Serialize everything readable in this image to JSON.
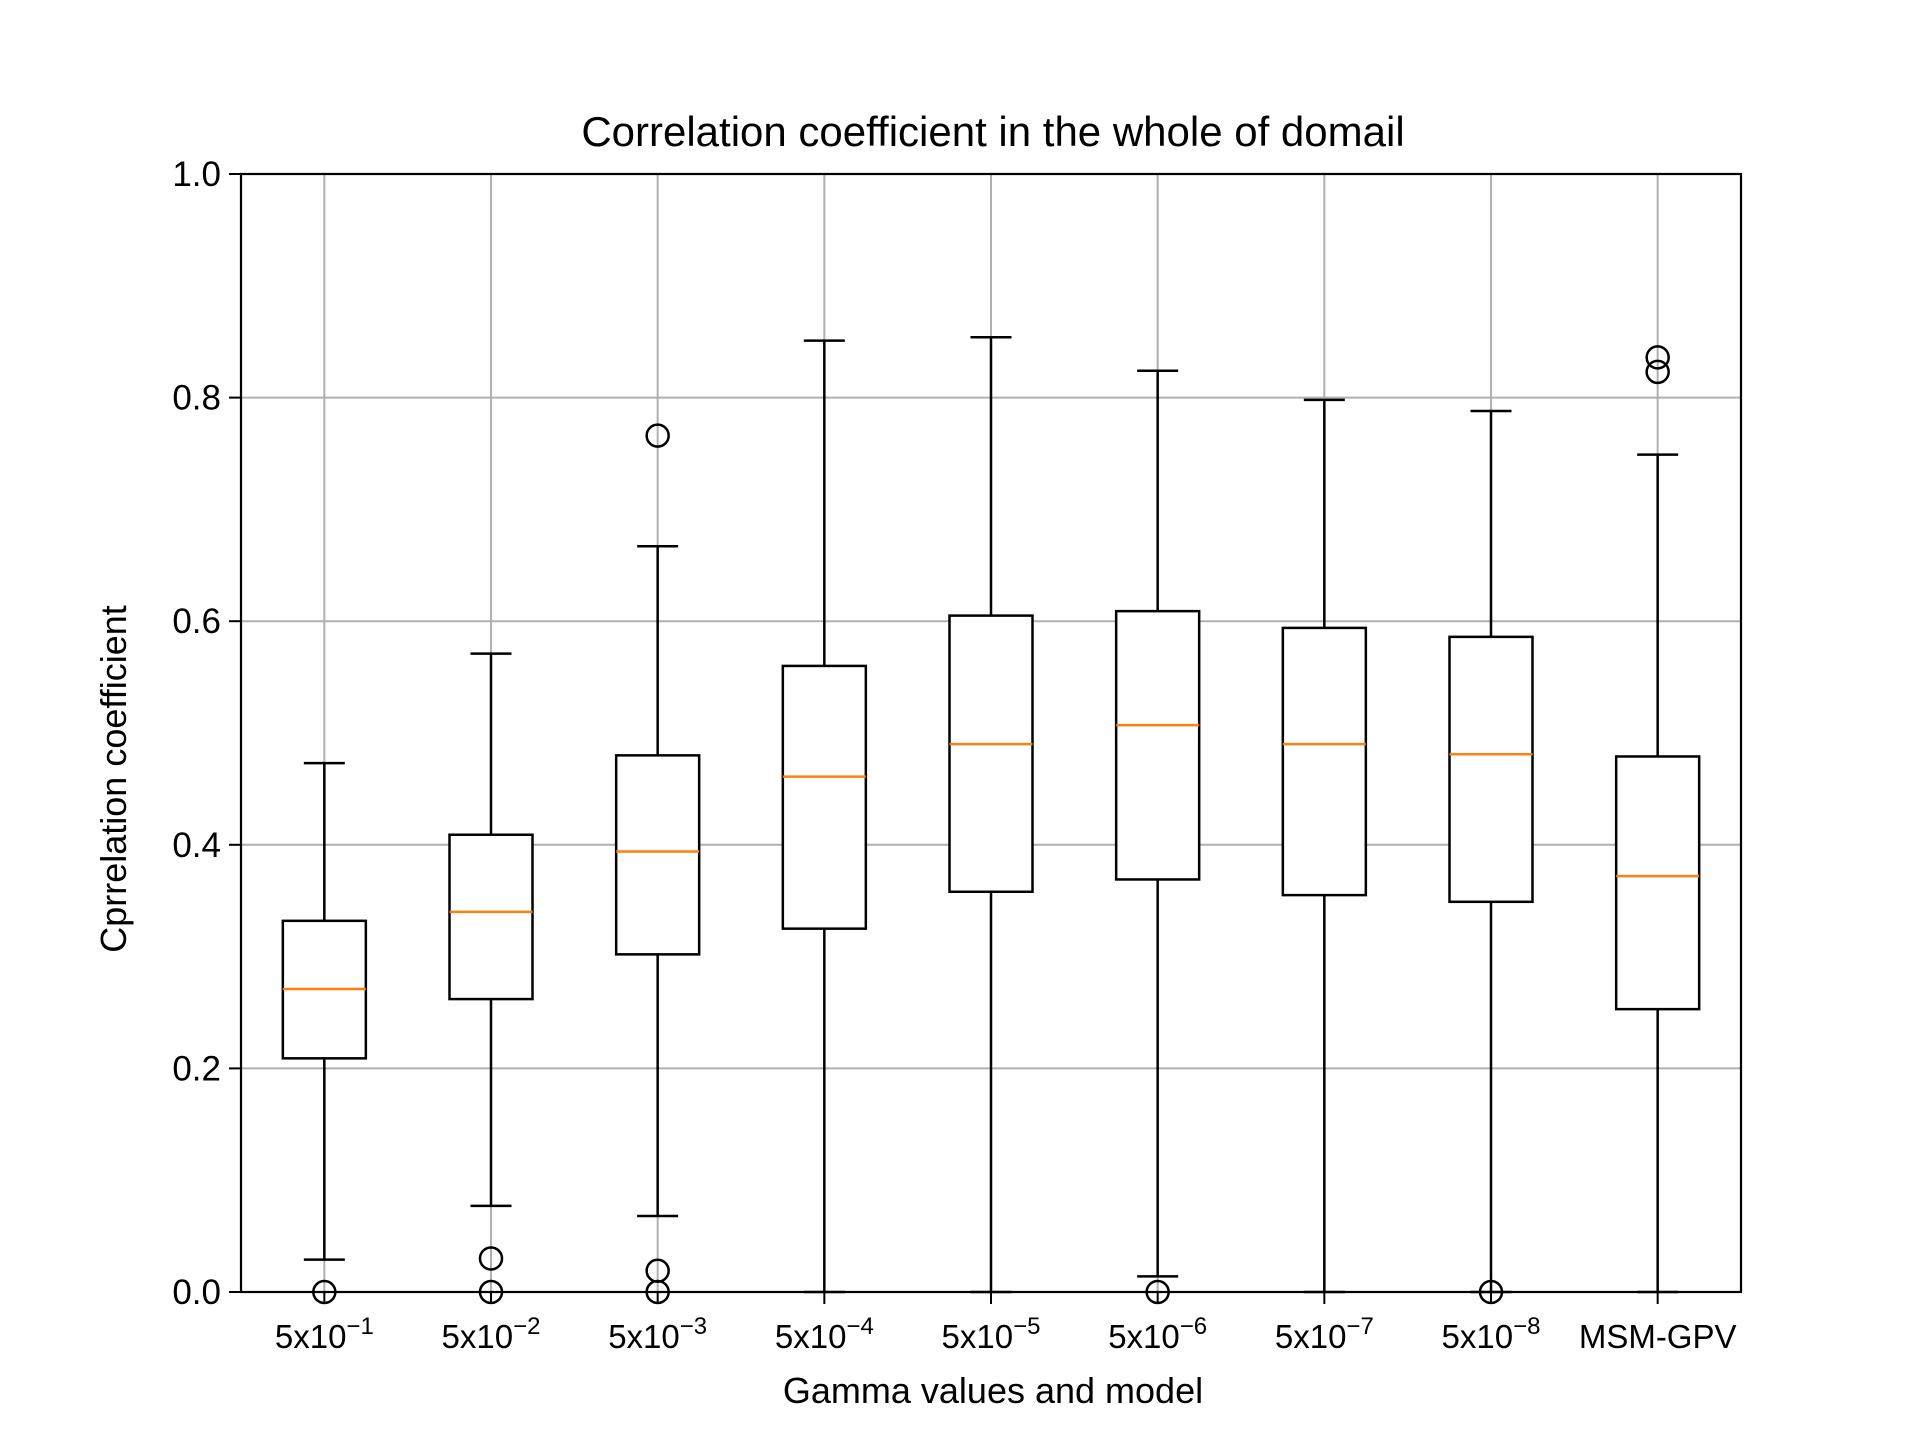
{
  "chart_data": {
    "type": "box",
    "title": "Correlation coefficient in the whole of domail",
    "xlabel": "Gamma values and model",
    "ylabel": "Cprrelation coefficient",
    "ylim": [
      0,
      1
    ],
    "yticks": [
      "0.0",
      "0.2",
      "0.4",
      "0.6",
      "0.8",
      "1.0"
    ],
    "grid": true,
    "categories": [
      {
        "base": "5x10",
        "exp": "−1",
        "label": "5x10^-1"
      },
      {
        "base": "5x10",
        "exp": "−2",
        "label": "5x10^-2"
      },
      {
        "base": "5x10",
        "exp": "−3",
        "label": "5x10^-3"
      },
      {
        "base": "5x10",
        "exp": "−4",
        "label": "5x10^-4"
      },
      {
        "base": "5x10",
        "exp": "−5",
        "label": "5x10^-5"
      },
      {
        "base": "5x10",
        "exp": "−6",
        "label": "5x10^-6"
      },
      {
        "base": "5x10",
        "exp": "−7",
        "label": "5x10^-7"
      },
      {
        "base": "5x10",
        "exp": "−8",
        "label": "5x10^-8"
      },
      {
        "base": "MSM-GPV",
        "exp": "",
        "label": "MSM-GPV"
      }
    ],
    "boxes": [
      {
        "whislo": 0.029,
        "q1": 0.209,
        "med": 0.271,
        "q3": 0.332,
        "whishi": 0.473,
        "fliers": [
          0.0
        ]
      },
      {
        "whislo": 0.077,
        "q1": 0.262,
        "med": 0.34,
        "q3": 0.409,
        "whishi": 0.571,
        "fliers": [
          0.0,
          0.03
        ]
      },
      {
        "whislo": 0.068,
        "q1": 0.302,
        "med": 0.394,
        "q3": 0.48,
        "whishi": 0.667,
        "fliers": [
          0.0,
          0.019,
          0.766
        ]
      },
      {
        "whislo": 0.0,
        "q1": 0.325,
        "med": 0.461,
        "q3": 0.56,
        "whishi": 0.851,
        "fliers": []
      },
      {
        "whislo": 0.0,
        "q1": 0.358,
        "med": 0.49,
        "q3": 0.605,
        "whishi": 0.854,
        "fliers": []
      },
      {
        "whislo": 0.014,
        "q1": 0.369,
        "med": 0.507,
        "q3": 0.609,
        "whishi": 0.824,
        "fliers": [
          0.0
        ]
      },
      {
        "whislo": 0.0,
        "q1": 0.355,
        "med": 0.49,
        "q3": 0.594,
        "whishi": 0.798,
        "fliers": []
      },
      {
        "whislo": 0.0,
        "q1": 0.349,
        "med": 0.481,
        "q3": 0.586,
        "whishi": 0.788,
        "fliers": [
          0.0
        ]
      },
      {
        "whislo": 0.0,
        "q1": 0.253,
        "med": 0.372,
        "q3": 0.479,
        "whishi": 0.749,
        "fliers": [
          0.823,
          0.836
        ]
      }
    ],
    "colors": {
      "box": "#000000",
      "median": "#ff7f0e",
      "grid": "#b0b0b0",
      "background": "#ffffff"
    }
  }
}
